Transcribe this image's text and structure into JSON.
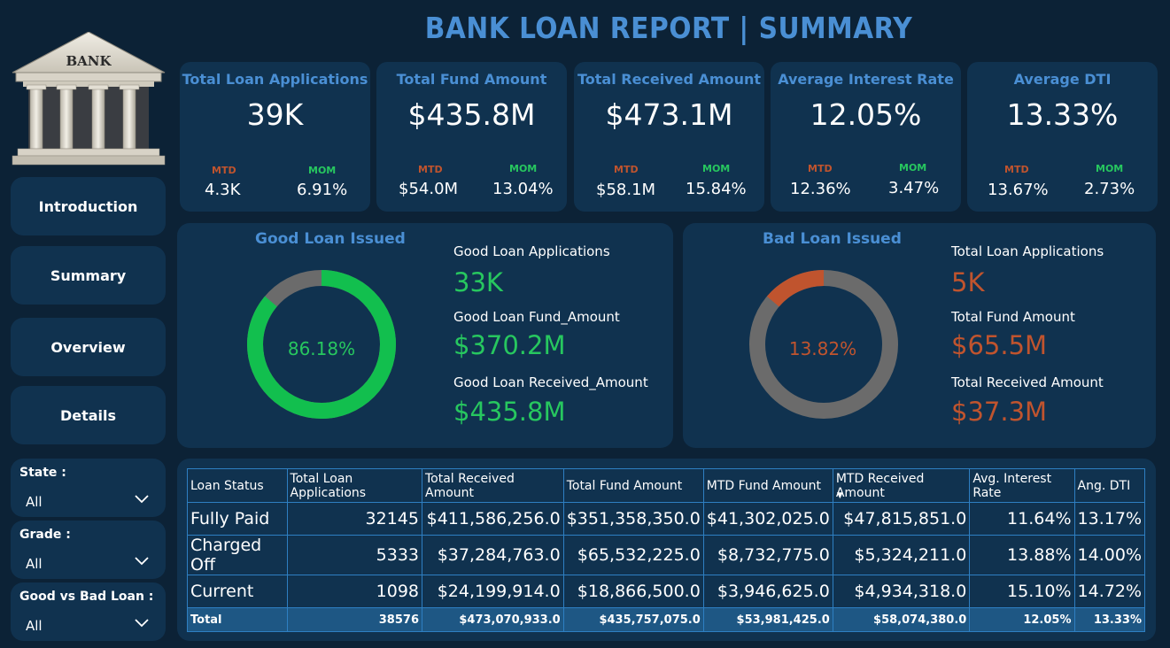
{
  "page_title": "BANK LOAN REPORT | SUMMARY",
  "logo": {
    "text": "BANK"
  },
  "nav": [
    {
      "label": "Introduction"
    },
    {
      "label": "Summary"
    },
    {
      "label": "Overview"
    },
    {
      "label": "Details"
    }
  ],
  "filters": [
    {
      "label": "State :",
      "value": "All"
    },
    {
      "label": "Grade :",
      "value": "All"
    },
    {
      "label": "Good vs Bad Loan :",
      "value": "All"
    }
  ],
  "kpis": [
    {
      "label": "Total Loan Applications",
      "value": "39K",
      "mtd_tag": "MTD",
      "mom_tag": "MOM",
      "mtd": "4.3K",
      "mom": "6.91%"
    },
    {
      "label": "Total Fund Amount",
      "value": "$435.8M",
      "mtd_tag": "MTD",
      "mom_tag": "MOM",
      "mtd": "$54.0M",
      "mom": "13.04%"
    },
    {
      "label": "Total Received Amount",
      "value": "$473.1M",
      "mtd_tag": "MTD",
      "mom_tag": "MOM",
      "mtd": "$58.1M",
      "mom": "15.84%"
    },
    {
      "label": "Average Interest Rate",
      "value": "12.05%",
      "mtd_tag": "MTD",
      "mom_tag": "MOM",
      "mtd": "12.36%",
      "mom": "3.47%"
    },
    {
      "label": "Average DTI",
      "value": "13.33%",
      "mtd_tag": "MTD",
      "mom_tag": "MOM",
      "mtd": "13.67%",
      "mom": "2.73%"
    }
  ],
  "good_loan": {
    "title": "Good Loan Issued",
    "percent_label": "86.18%",
    "percent": 86.18,
    "items": [
      {
        "label": "Good Loan Applications",
        "value": "33K"
      },
      {
        "label": "Good Loan Fund_Amount",
        "value": "$370.2M"
      },
      {
        "label": "Good Loan Received_Amount",
        "value": "$435.8M"
      }
    ],
    "color": "#12bf4e"
  },
  "bad_loan": {
    "title": "Bad Loan Issued",
    "percent_label": "13.82%",
    "percent": 13.82,
    "items": [
      {
        "label": "Total Loan Applications",
        "value": "5K"
      },
      {
        "label": "Total Fund Amount",
        "value": "$65.5M"
      },
      {
        "label": "Total Received Amount",
        "value": "$37.3M"
      }
    ],
    "color": "#c0542e"
  },
  "donut_rest_color": "#6b6b6b",
  "table": {
    "headers": [
      "Loan Status",
      "Total Loan Applications",
      "Total Received Amount",
      "Total Fund Amount",
      "MTD Fund Amount",
      "MTD Received Amount",
      "Avg. Interest Rate",
      "Ang. DTI"
    ],
    "rows": [
      [
        "Fully Paid",
        "32145",
        "$411,586,256.0",
        "$351,358,350.0",
        "$41,302,025.0",
        "$47,815,851.0",
        "11.64%",
        "13.17%"
      ],
      [
        "Charged Off",
        "5333",
        "$37,284,763.0",
        "$65,532,225.0",
        "$8,732,775.0",
        "$5,324,211.0",
        "13.88%",
        "14.00%"
      ],
      [
        "Current",
        "1098",
        "$24,199,914.0",
        "$18,866,500.0",
        "$3,946,625.0",
        "$4,934,318.0",
        "15.10%",
        "14.72%"
      ]
    ],
    "total": [
      "Total",
      "38576",
      "$473,070,933.0",
      "$435,757,075.0",
      "$53,981,425.0",
      "$58,074,380.0",
      "12.05%",
      "13.33%"
    ]
  }
}
